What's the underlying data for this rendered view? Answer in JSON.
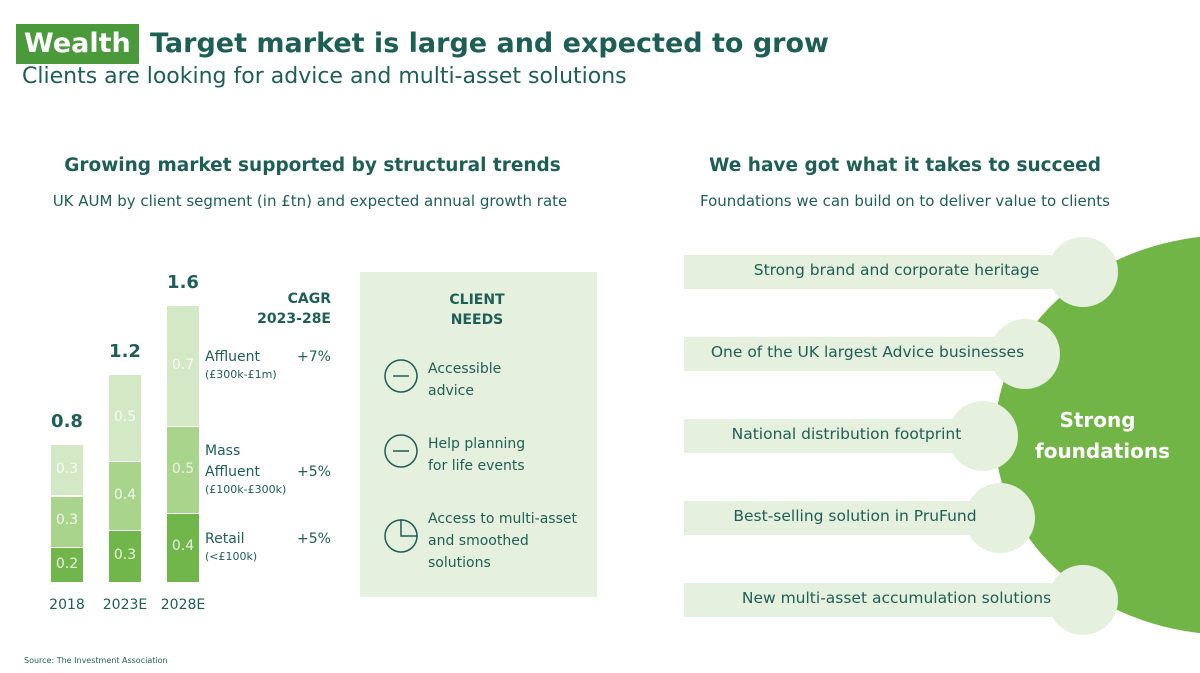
{
  "header": {
    "tag": "Wealth",
    "title": "Target market is large and expected to grow",
    "subtitle": "Clients are looking for advice and multi-asset solutions"
  },
  "left": {
    "heading": "Growing market supported by structural trends",
    "subheading": "UK AUM by client segment (in £tn) and expected annual growth rate"
  },
  "chart_data": {
    "type": "stacked_bar",
    "categories": [
      "2018",
      "2023E",
      "2028E"
    ],
    "series": [
      {
        "name": "Retail",
        "detail": "(<£100k)",
        "growth": "+5%",
        "color": "#70b64a",
        "values": [
          0.2,
          0.3,
          0.4
        ]
      },
      {
        "name": "Mass Affluent",
        "detail": "(£100k-£300k)",
        "growth": "+5%",
        "color": "#a9d48c",
        "values": [
          0.3,
          0.4,
          0.5
        ]
      },
      {
        "name": "Affluent",
        "detail": "(£300k-£1m)",
        "growth": "+7%",
        "color": "#d3e8c4",
        "values": [
          0.3,
          0.5,
          0.7
        ]
      }
    ],
    "totals": [
      0.8,
      1.2,
      1.6
    ],
    "cagr_title": [
      "CAGR",
      "2023-28E"
    ]
  },
  "client_needs": {
    "title": "CLIENT NEEDS",
    "items": [
      "Accessible advice",
      "Help planning for life events",
      "Access to multi-asset and smoothed solutions"
    ]
  },
  "right": {
    "heading": "We have got what it takes to succeed",
    "subheading": "Foundations we can build on to deliver value to clients",
    "circle_label": "Strong foundations",
    "items": [
      "Strong brand and corporate heritage",
      "One of the UK largest Advice businesses",
      "National distribution footprint",
      "Best-selling solution in PruFund",
      "New multi-asset accumulation solutions"
    ]
  },
  "source": "Source:  The Investment Association"
}
